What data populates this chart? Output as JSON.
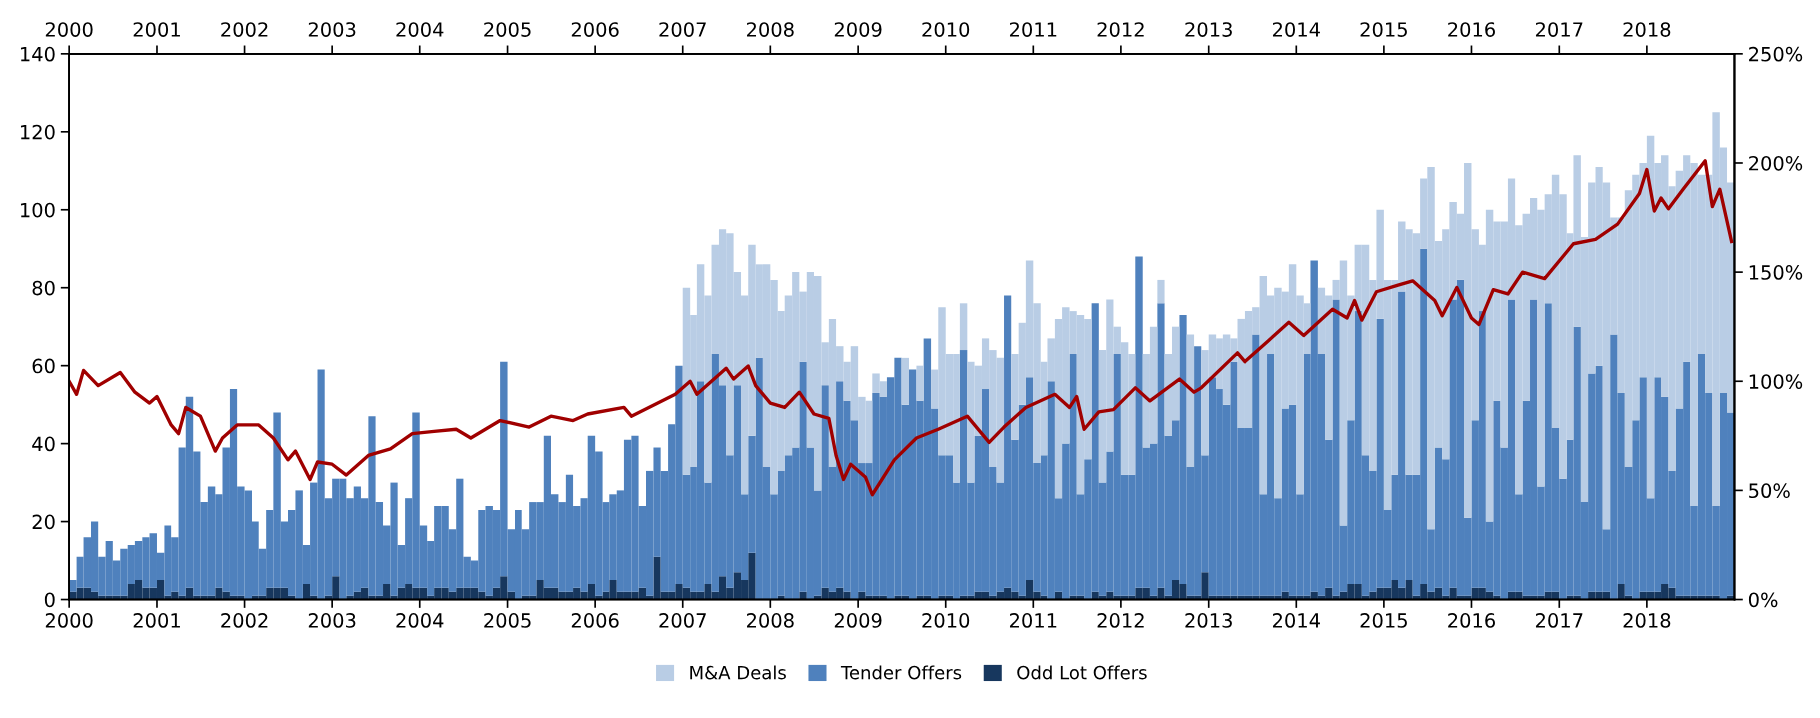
{
  "chart_data": {
    "type": "bar",
    "legend": "bottom",
    "stacked": true,
    "x": [
      "2000-01",
      "2000-02",
      "2000-03",
      "2000-04",
      "2000-05",
      "2000-06",
      "2000-07",
      "2000-08",
      "2000-09",
      "2000-10",
      "2000-11",
      "2000-12",
      "2001-01",
      "2001-02",
      "2001-03",
      "2001-04",
      "2001-05",
      "2001-06",
      "2001-07",
      "2001-08",
      "2001-09",
      "2001-10",
      "2001-11",
      "2001-12",
      "2002-01",
      "2002-02",
      "2002-03",
      "2002-04",
      "2002-05",
      "2002-06",
      "2002-07",
      "2002-08",
      "2002-09",
      "2002-10",
      "2002-11",
      "2002-12",
      "2003-01",
      "2003-02",
      "2003-03",
      "2003-04",
      "2003-05",
      "2003-06",
      "2003-07",
      "2003-08",
      "2003-09",
      "2003-10",
      "2003-11",
      "2003-12",
      "2004-01",
      "2004-02",
      "2004-03",
      "2004-04",
      "2004-05",
      "2004-06",
      "2004-07",
      "2004-08",
      "2004-09",
      "2004-10",
      "2004-11",
      "2004-12",
      "2005-01",
      "2005-02",
      "2005-03",
      "2005-04",
      "2005-05",
      "2005-06",
      "2005-07",
      "2005-08",
      "2005-09",
      "2005-10",
      "2005-11",
      "2005-12",
      "2006-01",
      "2006-02",
      "2006-03",
      "2006-04",
      "2006-05",
      "2006-06",
      "2006-07",
      "2006-08",
      "2006-09",
      "2006-10",
      "2006-11",
      "2006-12",
      "2007-01",
      "2007-02",
      "2007-03",
      "2007-04",
      "2007-05",
      "2007-06",
      "2007-07",
      "2007-08",
      "2007-09",
      "2007-10",
      "2007-11",
      "2007-12",
      "2008-01",
      "2008-02",
      "2008-03",
      "2008-04",
      "2008-05",
      "2008-06",
      "2008-07",
      "2008-08",
      "2008-09",
      "2008-10",
      "2008-11",
      "2008-12",
      "2009-01",
      "2009-02",
      "2009-03",
      "2009-04",
      "2009-05",
      "2009-06",
      "2009-07",
      "2009-08",
      "2009-09",
      "2009-10",
      "2009-11",
      "2009-12",
      "2010-01",
      "2010-02",
      "2010-03",
      "2010-04",
      "2010-05",
      "2010-06",
      "2010-07",
      "2010-08",
      "2010-09",
      "2010-10",
      "2010-11",
      "2010-12",
      "2011-01",
      "2011-02",
      "2011-03",
      "2011-04",
      "2011-05",
      "2011-06",
      "2011-07",
      "2011-08",
      "2011-09",
      "2011-10",
      "2011-11",
      "2011-12",
      "2012-01",
      "2012-02",
      "2012-03",
      "2012-04",
      "2012-05",
      "2012-06",
      "2012-07",
      "2012-08",
      "2012-09",
      "2012-10",
      "2012-11",
      "2012-12",
      "2013-01",
      "2013-02",
      "2013-03",
      "2013-04",
      "2013-05",
      "2013-06",
      "2013-07",
      "2013-08",
      "2013-09",
      "2013-10",
      "2013-11",
      "2013-12",
      "2014-01",
      "2014-02",
      "2014-03",
      "2014-04",
      "2014-05",
      "2014-06",
      "2014-07",
      "2014-08",
      "2014-09",
      "2014-10",
      "2014-11",
      "2014-12",
      "2015-01",
      "2015-02",
      "2015-03",
      "2015-04",
      "2015-05",
      "2015-06",
      "2015-07",
      "2015-08",
      "2015-09",
      "2015-10",
      "2015-11",
      "2015-12",
      "2016-01",
      "2016-02",
      "2016-03",
      "2016-04",
      "2016-05",
      "2016-06",
      "2016-07",
      "2016-08",
      "2016-09",
      "2016-10",
      "2016-11",
      "2016-12",
      "2017-01",
      "2017-02",
      "2017-03",
      "2017-04",
      "2017-05",
      "2017-06",
      "2017-07",
      "2017-08",
      "2017-09",
      "2017-10",
      "2017-11",
      "2017-12",
      "2018-01",
      "2018-02",
      "2018-03",
      "2018-04",
      "2018-05",
      "2018-06",
      "2018-07",
      "2018-08",
      "2018-09",
      "2018-10",
      "2018-11",
      "2018-12"
    ],
    "xlim": [
      "2000",
      "2019"
    ],
    "xticks": [
      "2000",
      "2001",
      "2002",
      "2003",
      "2004",
      "2005",
      "2006",
      "2007",
      "2008",
      "2009",
      "2010",
      "2011",
      "2012",
      "2013",
      "2014",
      "2015",
      "2016",
      "2017",
      "2018"
    ],
    "x2lim": [
      "2000",
      "2019"
    ],
    "x2ticks": [
      "2000",
      "2001",
      "2002",
      "2003",
      "2004",
      "2005",
      "2006",
      "2007",
      "2008",
      "2009",
      "2010",
      "2011",
      "2012",
      "2013",
      "2014",
      "2015",
      "2016",
      "2017",
      "2018"
    ],
    "ylim": [
      0,
      140
    ],
    "yticks": [
      0,
      20,
      40,
      60,
      80,
      100,
      120,
      140
    ],
    "y2lim": [
      0,
      250
    ],
    "y2ticks": [
      {
        "value": 0,
        "label": "0%"
      },
      {
        "value": 50,
        "label": "50%"
      },
      {
        "value": 100,
        "label": "100%"
      },
      {
        "value": 150,
        "label": "150%"
      },
      {
        "value": 200,
        "label": "200%"
      },
      {
        "value": 250,
        "label": "250%"
      }
    ],
    "series": [
      {
        "name": "Odd Lot Offers",
        "color": "#17375e",
        "values": [
          2,
          3,
          3,
          2,
          1,
          1,
          1,
          1,
          4,
          5,
          3,
          3,
          5,
          1,
          2,
          1,
          3,
          1,
          1,
          1,
          3,
          2,
          1,
          1,
          0,
          1,
          1,
          3,
          3,
          3,
          1,
          0,
          4,
          1,
          0,
          1,
          6,
          0,
          1,
          2,
          3,
          1,
          1,
          4,
          1,
          3,
          4,
          3,
          3,
          1,
          3,
          3,
          2,
          3,
          3,
          3,
          2,
          1,
          3,
          6,
          2,
          0,
          1,
          1,
          5,
          3,
          3,
          2,
          2,
          3,
          2,
          4,
          1,
          2,
          5,
          2,
          2,
          2,
          3,
          1,
          11,
          2,
          2,
          4,
          3,
          2,
          2,
          4,
          2,
          6,
          3,
          7,
          5,
          12,
          0,
          0,
          0,
          1,
          0,
          0,
          2,
          0,
          1,
          3,
          2,
          3,
          2,
          0,
          2,
          1,
          1,
          1,
          0,
          1,
          1,
          0,
          1,
          1,
          0,
          1,
          1,
          0,
          1,
          1,
          2,
          2,
          1,
          2,
          3,
          2,
          1,
          5,
          2,
          1,
          0,
          2,
          0,
          1,
          1,
          0,
          2,
          1,
          2,
          1,
          1,
          1,
          3,
          3,
          1,
          3,
          1,
          5,
          4,
          1,
          1,
          7,
          1,
          1,
          1,
          1,
          1,
          1,
          1,
          1,
          1,
          1,
          2,
          1,
          1,
          1,
          2,
          1,
          3,
          1,
          2,
          4,
          4,
          1,
          2,
          3,
          3,
          5,
          3,
          5,
          1,
          4,
          2,
          3,
          1,
          3,
          1,
          1,
          3,
          3,
          2,
          1,
          0,
          2,
          2,
          1,
          1,
          1,
          2,
          2,
          0,
          1,
          1,
          0,
          2,
          2,
          2,
          0,
          4,
          1,
          0,
          2,
          2,
          2,
          4,
          3,
          1,
          1,
          1,
          1,
          1,
          1,
          0,
          1
        ]
      },
      {
        "name": "Tender Offers",
        "color": "#4f81bd",
        "values": [
          3,
          8,
          13,
          18,
          10,
          14,
          9,
          12,
          10,
          10,
          13,
          14,
          7,
          18,
          14,
          38,
          49,
          37,
          24,
          28,
          24,
          37,
          53,
          28,
          28,
          19,
          12,
          20,
          45,
          17,
          22,
          28,
          10,
          29,
          59,
          25,
          25,
          31,
          25,
          27,
          23,
          46,
          24,
          15,
          29,
          11,
          22,
          45,
          16,
          14,
          21,
          21,
          16,
          28,
          8,
          7,
          21,
          23,
          20,
          55,
          16,
          23,
          17,
          24,
          20,
          39,
          24,
          23,
          30,
          21,
          24,
          38,
          37,
          23,
          22,
          26,
          39,
          40,
          21,
          32,
          28,
          31,
          43,
          56,
          29,
          32,
          54,
          26,
          61,
          49,
          34,
          48,
          22,
          30,
          62,
          34,
          27,
          32,
          37,
          39,
          59,
          39,
          27,
          52,
          32,
          53,
          49,
          46,
          33,
          34,
          52,
          51,
          57,
          61,
          49,
          59,
          50,
          66,
          49,
          36,
          36,
          30,
          63,
          29,
          40,
          52,
          33,
          28,
          75,
          39,
          49,
          52,
          33,
          36,
          56,
          24,
          40,
          62,
          26,
          36,
          74,
          29,
          36,
          62,
          31,
          31,
          85,
          36,
          39,
          73,
          41,
          41,
          69,
          33,
          64,
          30,
          56,
          53,
          49,
          60,
          43,
          43,
          67,
          26,
          62,
          25,
          47,
          49,
          26,
          62,
          85,
          62,
          38,
          76,
          17,
          42,
          70,
          36,
          31,
          69,
          20,
          27,
          76,
          27,
          31,
          86,
          16,
          36,
          35,
          74,
          81,
          20,
          43,
          71,
          18,
          50,
          39,
          75,
          25,
          50,
          76,
          28,
          74,
          42,
          31,
          40,
          69,
          25,
          56,
          58,
          16,
          68,
          49,
          33,
          46,
          55,
          24,
          55,
          48,
          30,
          48,
          60,
          23,
          62,
          52,
          23,
          53,
          47
        ]
      },
      {
        "name": "M&A Deals",
        "color": "#b9cde5",
        "values": [
          null,
          null,
          null,
          null,
          null,
          null,
          null,
          null,
          null,
          null,
          null,
          null,
          null,
          null,
          null,
          null,
          null,
          null,
          null,
          null,
          null,
          null,
          null,
          null,
          null,
          null,
          null,
          null,
          null,
          null,
          null,
          null,
          null,
          null,
          null,
          null,
          null,
          null,
          null,
          null,
          null,
          null,
          null,
          null,
          null,
          null,
          null,
          null,
          null,
          null,
          null,
          null,
          null,
          null,
          null,
          null,
          null,
          null,
          null,
          null,
          null,
          null,
          null,
          null,
          null,
          null,
          null,
          null,
          null,
          null,
          null,
          null,
          null,
          null,
          null,
          null,
          null,
          null,
          null,
          null,
          null,
          null,
          null,
          null,
          48,
          39,
          30,
          48,
          28,
          40,
          57,
          29,
          51,
          49,
          24,
          52,
          55,
          41,
          41,
          45,
          18,
          45,
          55,
          11,
          38,
          9,
          10,
          19,
          17,
          16,
          5,
          4,
          null,
          null,
          12,
          null,
          9,
          null,
          10,
          38,
          26,
          33,
          12,
          31,
          18,
          13,
          30,
          32,
          null,
          22,
          21,
          30,
          41,
          24,
          11,
          46,
          35,
          11,
          46,
          36,
          null,
          34,
          39,
          7,
          34,
          31,
          null,
          24,
          30,
          6,
          21,
          24,
          null,
          34,
          null,
          27,
          11,
          13,
          18,
          6,
          28,
          30,
          7,
          56,
          15,
          54,
          30,
          36,
          51,
          13,
          null,
          17,
          37,
          5,
          68,
          32,
          17,
          54,
          49,
          28,
          59,
          50,
          18,
          63,
          62,
          18,
          93,
          53,
          59,
          25,
          17,
          91,
          49,
          17,
          80,
          46,
          58,
          31,
          69,
          48,
          26,
          71,
          28,
          65,
          73,
          53,
          44,
          68,
          49,
          51,
          89,
          30,
          45,
          71,
          63,
          55,
          93,
          55,
          62,
          73,
          61,
          53,
          88,
          46,
          56,
          101,
          63,
          59
        ]
      },
      {
        "type": "line",
        "axis": "y2",
        "color": "#a00000",
        "x": [
          "2000-01",
          "2000-02",
          "2000-03",
          "2000-05",
          "2000-08",
          "2000-10",
          "2000-12",
          "2001-01",
          "2001-03",
          "2001-04",
          "2001-05",
          "2001-07",
          "2001-09",
          "2001-10",
          "2001-12",
          "2002-03",
          "2002-05",
          "2002-07",
          "2002-08",
          "2002-10",
          "2002-11",
          "2003-01",
          "2003-03",
          "2003-06",
          "2003-09",
          "2003-12",
          "2004-03",
          "2004-06",
          "2004-08",
          "2004-12",
          "2005-04",
          "2005-07",
          "2005-10",
          "2005-12",
          "2006-05",
          "2006-06",
          "2006-12",
          "2007-02",
          "2007-03",
          "2007-07",
          "2007-08",
          "2007-10",
          "2007-11",
          "2008-01",
          "2008-03",
          "2008-05",
          "2008-07",
          "2008-09",
          "2008-10",
          "2008-11",
          "2008-12",
          "2009-02",
          "2009-03",
          "2009-06",
          "2009-09",
          "2009-12",
          "2010-04",
          "2010-07",
          "2010-09",
          "2010-12",
          "2011-04",
          "2011-06",
          "2011-07",
          "2011-08",
          "2011-10",
          "2011-12",
          "2012-03",
          "2012-05",
          "2012-09",
          "2012-11",
          "2012-12",
          "2013-05",
          "2013-06",
          "2013-09",
          "2013-12",
          "2014-02",
          "2014-06",
          "2014-08",
          "2014-09",
          "2014-10",
          "2014-12",
          "2015-03",
          "2015-05",
          "2015-08",
          "2015-09",
          "2015-11",
          "2016-01",
          "2016-02",
          "2016-04",
          "2016-06",
          "2016-08",
          "2016-11",
          "2017-03",
          "2017-06",
          "2017-09",
          "2017-12",
          "2018-01",
          "2018-02",
          "2018-03",
          "2018-04",
          "2018-06",
          "2018-09",
          "2018-10",
          "2018-11",
          "2018-12-20"
        ],
        "values": [
          100,
          94,
          105,
          98,
          104,
          95,
          90,
          93,
          80,
          76,
          88,
          84,
          68,
          74,
          80,
          80,
          74,
          64,
          68,
          55,
          63,
          62,
          57,
          66,
          69,
          76,
          77,
          78,
          74,
          82,
          79,
          84,
          82,
          85,
          88,
          84,
          94,
          100,
          94,
          106,
          101,
          107,
          98,
          90,
          88,
          95,
          85,
          83,
          66,
          55,
          62,
          56,
          48,
          64,
          74,
          78,
          84,
          72,
          79,
          88,
          94,
          88,
          93,
          78,
          86,
          87,
          97,
          91,
          101,
          95,
          97,
          113,
          109,
          118,
          127,
          121,
          133,
          129,
          137,
          128,
          141,
          144,
          146,
          137,
          130,
          143,
          129,
          126,
          142,
          140,
          150,
          147,
          163,
          165,
          172,
          186,
          197,
          178,
          184,
          179,
          188,
          201,
          180,
          188,
          164
        ]
      }
    ]
  }
}
